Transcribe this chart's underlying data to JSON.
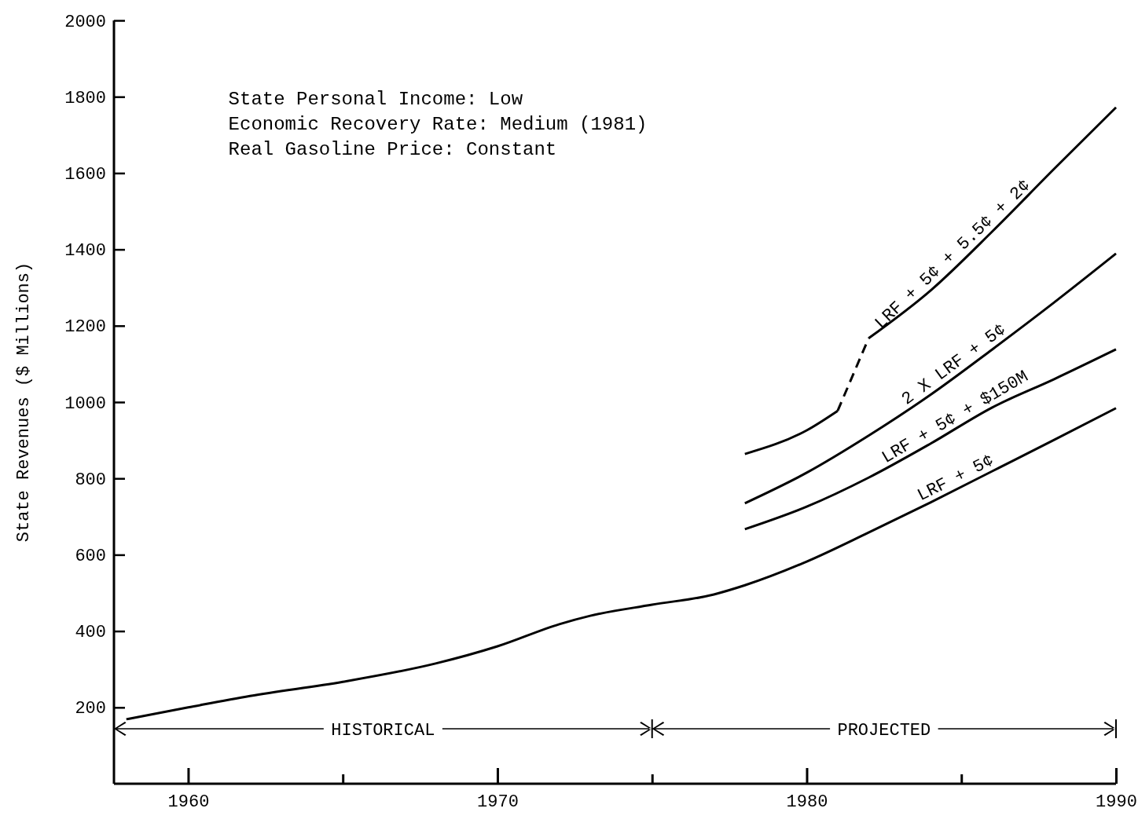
{
  "chart_data": {
    "type": "line",
    "ylabel": "State Revenues ($ Millions)",
    "xlim": [
      1957.6,
      1990
    ],
    "ylim": [
      0,
      2000
    ],
    "xticks": [
      1960,
      {
        "value": 1965,
        "label": null
      },
      1970,
      {
        "value": 1975,
        "label": null
      },
      1980,
      {
        "value": 1985,
        "label": null
      },
      1990
    ],
    "yticks": [
      200,
      400,
      600,
      800,
      1000,
      1200,
      1400,
      1600,
      1800,
      2000
    ],
    "grid": false,
    "legend": false,
    "marker": "none",
    "series": [
      {
        "name": "LRF + 5¢",
        "color": "#000000",
        "x": [
          1958,
          1960,
          1962,
          1965,
          1968,
          1970,
          1972,
          1973,
          1975,
          1977,
          1978,
          1980,
          1982,
          1984,
          1986,
          1988,
          1990
        ],
        "values": [
          169,
          200,
          230,
          267,
          315,
          360,
          418,
          440,
          469,
          496,
          520,
          582,
          658,
          737,
          819,
          901,
          984
        ]
      },
      {
        "name": "LRF + 5¢ + $150M",
        "color": "#000000",
        "x": [
          1978,
          1980,
          1982,
          1984,
          1986,
          1988,
          1990
        ],
        "values": [
          667,
          726,
          802,
          891,
          986,
          1060,
          1138
        ]
      },
      {
        "name": "2 X LRF + 5¢",
        "color": "#000000",
        "x": [
          1978,
          1980,
          1982,
          1984,
          1986,
          1988,
          1990
        ],
        "values": [
          735,
          815,
          912,
          1019,
          1138,
          1261,
          1389
        ]
      },
      {
        "name": "LRF + 5¢ + 5.5¢ + 2¢",
        "color": "#000000",
        "x": [
          1982,
          1984,
          1986,
          1988,
          1990
        ],
        "values": [
          1167,
          1292,
          1447,
          1611,
          1772
        ]
      },
      {
        "color": "#000000",
        "x": [
          1978,
          1980,
          1981
        ],
        "values": [
          864,
          926,
          977
        ]
      },
      {
        "color": "#000000",
        "line_style": "dashed",
        "x": [
          1981,
          1982
        ],
        "values": [
          977,
          1167
        ]
      }
    ],
    "annotations": [
      "State Personal Income: Low\nEconomic Recovery Rate: Medium (1981)\nReal Gasoline Price: Constant",
      "HISTORICAL",
      "PROJECTED"
    ]
  }
}
